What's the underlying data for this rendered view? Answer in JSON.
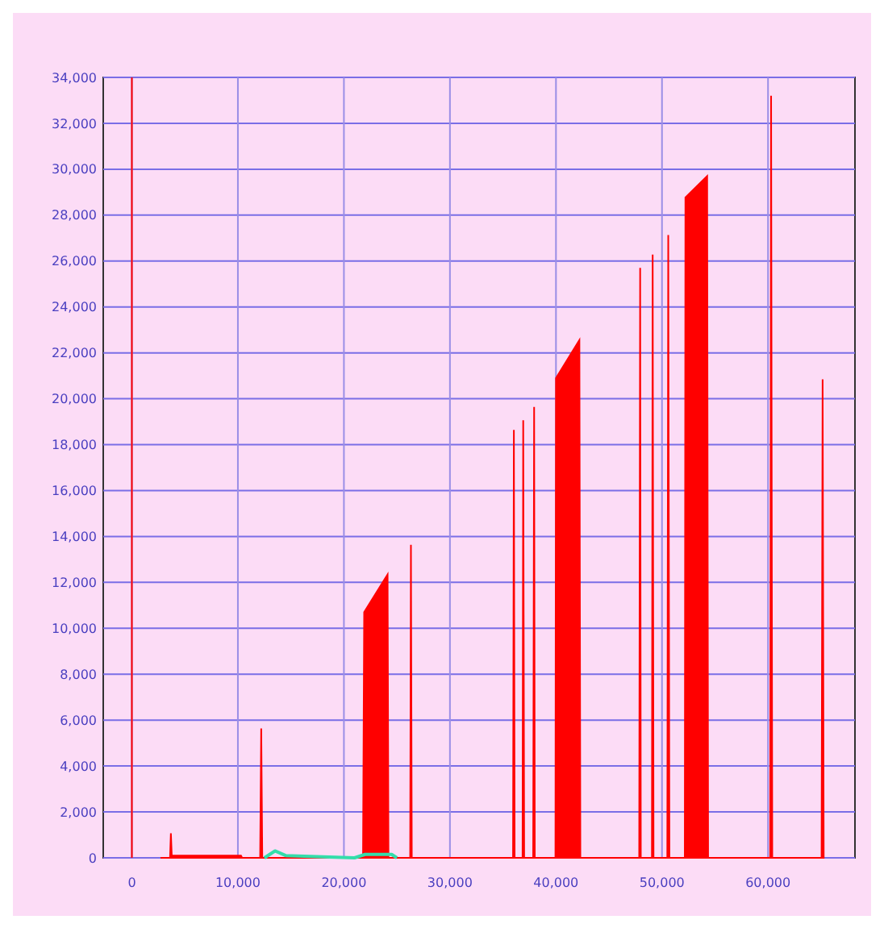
{
  "chart_data": {
    "type": "area",
    "xlim": [
      -2700,
      68200
    ],
    "ylim": [
      0,
      34000
    ],
    "xticks": [
      {
        "value": 0,
        "label": "0"
      },
      {
        "value": 10000,
        "label": "10,000"
      },
      {
        "value": 20000,
        "label": "20,000"
      },
      {
        "value": 30000,
        "label": "30,000"
      },
      {
        "value": 40000,
        "label": "40,000"
      },
      {
        "value": 50000,
        "label": "50,000"
      },
      {
        "value": 60000,
        "label": "60,000"
      }
    ],
    "yticks": [
      {
        "value": 0,
        "label": "0"
      },
      {
        "value": 2000,
        "label": "2,000"
      },
      {
        "value": 4000,
        "label": "4,000"
      },
      {
        "value": 6000,
        "label": "6,000"
      },
      {
        "value": 8000,
        "label": "8,000"
      },
      {
        "value": 10000,
        "label": "10,000"
      },
      {
        "value": 12000,
        "label": "12,000"
      },
      {
        "value": 14000,
        "label": "14,000"
      },
      {
        "value": 16000,
        "label": "16,000"
      },
      {
        "value": 18000,
        "label": "18,000"
      },
      {
        "value": 20000,
        "label": "20,000"
      },
      {
        "value": 22000,
        "label": "22,000"
      },
      {
        "value": 24000,
        "label": "24,000"
      },
      {
        "value": 26000,
        "label": "26,000"
      },
      {
        "value": 28000,
        "label": "28,000"
      },
      {
        "value": 30000,
        "label": "30,000"
      },
      {
        "value": 32000,
        "label": "32,000"
      },
      {
        "value": 34000,
        "label": "34,000"
      }
    ],
    "grid": true,
    "series": [
      {
        "color": "#ff0000",
        "x": [
          2700,
          3600,
          3680,
          3760,
          10290,
          10400,
          12100,
          12200,
          12300,
          21800,
          21910,
          24120,
          24200,
          26250,
          26320,
          26400,
          35950,
          36030,
          36100,
          36850,
          36910,
          37000,
          37850,
          37940,
          38000,
          39950,
          40000,
          42210,
          42300,
          47850,
          47940,
          48000,
          49050,
          49120,
          49200,
          50500,
          50590,
          50700,
          52150,
          52210,
          54260,
          54350,
          60200,
          60290,
          60400,
          65050,
          65150,
          65250
        ],
        "values": [
          0,
          0,
          1070,
          100,
          100,
          0,
          0,
          5640,
          0,
          0,
          10700,
          12350,
          0,
          0,
          13640,
          0,
          0,
          18640,
          0,
          0,
          19060,
          0,
          0,
          19640,
          0,
          0,
          20900,
          22560,
          0,
          0,
          25700,
          0,
          0,
          26280,
          0,
          0,
          27130,
          0,
          0,
          28770,
          29700,
          0,
          0,
          33200,
          0,
          0,
          20850,
          0
        ]
      },
      {
        "type": "line",
        "color": "#33ddaa",
        "x": [
          12500,
          13500,
          14500,
          21000,
          22000,
          24500,
          25000
        ],
        "values": [
          0,
          300,
          100,
          0,
          150,
          150,
          0
        ]
      }
    ],
    "ref_lines": [
      {
        "axis": "x",
        "value": 0,
        "color": "#ff0000"
      }
    ]
  }
}
